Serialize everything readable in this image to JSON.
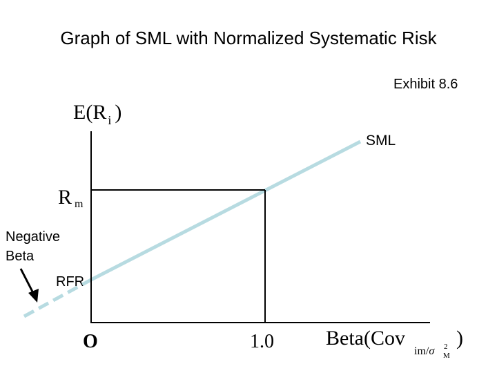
{
  "title": "Graph of SML with Normalized Systematic Risk",
  "exhibit": "Exhibit 8.6",
  "y_axis": {
    "main": "E(R",
    "sub": "i",
    "close": ")"
  },
  "market_return": {
    "main": "R",
    "sub": "m"
  },
  "line_label": "SML",
  "negative_beta": {
    "line1": "Negative",
    "line2": "Beta"
  },
  "rfr_label": "RFR",
  "origin_label": "O",
  "beta_one_label": "1.0",
  "x_axis": {
    "main": "Beta(Cov",
    "sub_prefix": "im/",
    "sigma": "σ",
    "sup": "2",
    "sub_m": "M",
    "close": ")"
  },
  "colors": {
    "sml": "#b7dbe1",
    "axes": "#000000",
    "arrow": "#000000"
  }
}
